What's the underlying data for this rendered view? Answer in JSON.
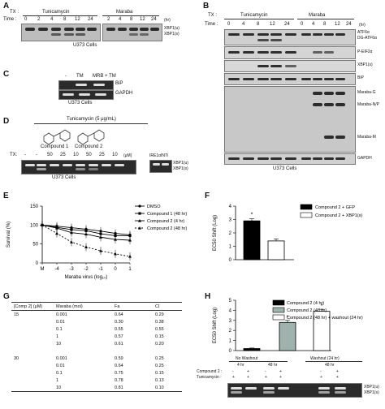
{
  "figure": {
    "panel_labels": [
      "A",
      "B",
      "C",
      "D",
      "E",
      "F",
      "G",
      "H"
    ]
  },
  "panelA": {
    "tx_label": "TX :",
    "time_label": "Time :",
    "group1": "Tunicamycin",
    "group2": "Maraba",
    "times1": [
      "0",
      "2",
      "4",
      "8",
      "12",
      "24"
    ],
    "times2": [
      "2",
      "4",
      "8",
      "12",
      "24"
    ],
    "unit": "(hr)",
    "bands": [
      "XBP1(u)",
      "XBP1(s)"
    ],
    "cells": "U373 Cells"
  },
  "panelB": {
    "tx_label": "TX :",
    "time_label": "Time :",
    "group1": "Tunicamycin",
    "group2": "Maraba",
    "times1": [
      "0",
      "4",
      "8",
      "12",
      "24"
    ],
    "times2": [
      "0",
      "4",
      "8",
      "12",
      "24"
    ],
    "unit": "(hr)",
    "labels": [
      "ATF6α",
      "DG-ATF6α",
      "P-EIF2α",
      "XBP1(s)",
      "BiP",
      "Maraba-G",
      "Maraba-N/P",
      "Maraba-M",
      "GAPDH"
    ],
    "cells": "U373 Cells"
  },
  "panelC": {
    "lanes": [
      "-",
      "TM",
      "MRB + TM"
    ],
    "labels": [
      "BiP",
      "GAPDH"
    ],
    "cells": "U373 Cells"
  },
  "panelD": {
    "title": "Tunicamycin (5 μg/mL)",
    "compound1": "Compound 1",
    "compound2": "Compound 2",
    "tx_label": "TX:",
    "lanes": [
      "-",
      "-",
      "50",
      "25",
      "10",
      "50",
      "25",
      "10"
    ],
    "unit": "(μM)",
    "ire_label": "IRE1αINTi",
    "bands": [
      "XBP1(u)",
      "XBP1(s)"
    ],
    "cells": "U373 Cells"
  },
  "panelE": {
    "ylabel": "Survival (%)",
    "xlabel": "Maraba virus (log₁₀)",
    "legend": [
      "DMSO",
      "Compound 1 (48 hr)",
      "Compound 2 (4 hr)",
      "Compound 2 (48 hr)"
    ]
  },
  "panelF": {
    "ylabel": "EC50 Shift (Log)",
    "legend": [
      "Compound 2 + GFP",
      "Compound 2 + XBP1(s)"
    ],
    "star": "*"
  },
  "panelG": {
    "headers": [
      "[Comp 2] (μM)",
      "Maraba (moi)",
      "Fa",
      "CI"
    ],
    "rows": [
      [
        "15",
        "0.001",
        "0.64",
        "0.29"
      ],
      [
        "",
        "0.01",
        "0.30",
        "0.38"
      ],
      [
        "",
        "0.1",
        "0.55",
        "0.55"
      ],
      [
        "",
        "1",
        "0.57",
        "0.15"
      ],
      [
        "",
        "10",
        "0.61",
        "0.20"
      ],
      [
        "",
        "",
        "",
        ""
      ],
      [
        "30",
        "0.001",
        "0.59",
        "0.25"
      ],
      [
        "",
        "0.01",
        "0.64",
        "0.25"
      ],
      [
        "",
        "0.1",
        "0.75",
        "0.15"
      ],
      [
        "",
        "1",
        "0.78",
        "0.13"
      ],
      [
        "",
        "10",
        "0.81",
        "0.10"
      ]
    ]
  },
  "panelH": {
    "ylabel": "EC50 Shift (Log)",
    "legend": [
      "Compound 2 (4 hr)",
      "Compound 2 (48 hr)",
      "Compound 2 (48 hr) + washout (24 hr)"
    ],
    "group_no": "No Washout",
    "group_wash": "Washout (24 hr)",
    "sub_4hr": "4 hr",
    "sub_48hr": "48 hr",
    "sub_48hr_b": "48 hr",
    "row_comp": "Compound 2 :",
    "row_tuni": "Tunicamycin :",
    "comp_signs": [
      "-",
      "+",
      "-",
      "+",
      "-",
      "+"
    ],
    "tuni_signs": [
      "+",
      "+",
      "+",
      "+",
      "+",
      "+"
    ],
    "bands": [
      "XBP1(u)",
      "XBP1(s)"
    ],
    "stars": [
      "*",
      "*"
    ]
  },
  "chart_data": [
    {
      "type": "line",
      "title": "",
      "xlabel": "Maraba virus (log10)",
      "ylabel": "Survival (%)",
      "categories": [
        "M",
        "-4",
        "-3",
        "-2",
        "-1",
        "0",
        "1"
      ],
      "ylim": [
        0,
        150
      ],
      "series": [
        {
          "name": "DMSO",
          "values": [
            100,
            97,
            93,
            89,
            84,
            78,
            74
          ]
        },
        {
          "name": "Compound 1 (48 hr)",
          "values": [
            100,
            94,
            88,
            85,
            77,
            72,
            72
          ]
        },
        {
          "name": "Compound 2 (4 hr)",
          "values": [
            100,
            92,
            80,
            76,
            68,
            62,
            60
          ]
        },
        {
          "name": "Compound 2 (48 hr)",
          "values": [
            100,
            78,
            55,
            42,
            32,
            24,
            17
          ]
        }
      ]
    },
    {
      "type": "bar",
      "title": "",
      "ylabel": "EC50 Shift (Log)",
      "categories": [
        "Compound 2 + GFP",
        "Compound 2 + XBP1(s)"
      ],
      "values": [
        2.9,
        1.4
      ],
      "errors": [
        0.15,
        0.15
      ],
      "ylim": [
        0,
        4
      ],
      "yticks": [
        "0",
        "1",
        "2",
        "3",
        "4"
      ],
      "colors": [
        "#000000",
        "#ffffff"
      ]
    },
    {
      "type": "bar",
      "title": "",
      "ylabel": "EC50 Shift (Log)",
      "categories": [
        "Compound 2 (4 hr)",
        "Compound 2 (48 hr)",
        "Compound 2 (48 hr) + washout (24 hr)"
      ],
      "values": [
        0.2,
        2.8,
        3.9
      ],
      "errors": [
        0.05,
        0.2,
        0.2
      ],
      "ylim": [
        0,
        5
      ],
      "yticks": [
        "0",
        "1",
        "2",
        "3",
        "4",
        "5"
      ],
      "colors": [
        "#000000",
        "#9fb3ae",
        "#ffffff"
      ]
    }
  ]
}
